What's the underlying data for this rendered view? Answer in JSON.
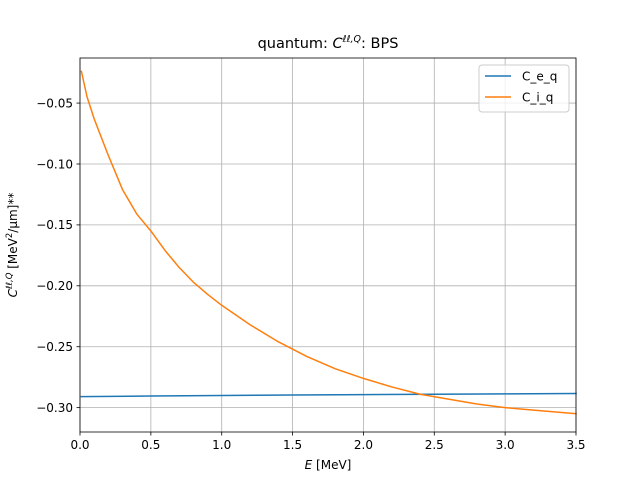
{
  "chart_data": {
    "type": "line",
    "title_prefix": "quantum: ",
    "title_symbol": "C",
    "title_superscript": "ℓℓ,Q",
    "title_suffix": ": BPS",
    "xlabel_symbol": "E",
    "xlabel_unit": " [MeV]",
    "ylabel_symbol": "C",
    "ylabel_superscript": "ℓℓ,Q",
    "ylabel_unit_a": " [MeV",
    "ylabel_unit_sup": "2",
    "ylabel_unit_b": "/μm]**",
    "xlim": [
      0,
      3.5
    ],
    "ylim": [
      -0.32,
      -0.013
    ],
    "xticks": [
      0.0,
      0.5,
      1.0,
      1.5,
      2.0,
      2.5,
      3.0,
      3.5
    ],
    "xtick_labels": [
      "0.0",
      "0.5",
      "1.0",
      "1.5",
      "2.0",
      "2.5",
      "3.0",
      "3.5"
    ],
    "yticks": [
      -0.05,
      -0.1,
      -0.15,
      -0.2,
      -0.25,
      -0.3
    ],
    "ytick_labels": [
      "−0.05",
      "−0.10",
      "−0.15",
      "−0.20",
      "−0.25",
      "−0.30"
    ],
    "grid": true,
    "legend_position": "top-right",
    "series": [
      {
        "name": "C_e_q",
        "color": "#1f77b4",
        "x": [
          0.01,
          0.5,
          1.0,
          1.5,
          2.0,
          2.5,
          3.0,
          3.5
        ],
        "y": [
          -0.291,
          -0.2905,
          -0.29,
          -0.2896,
          -0.2893,
          -0.289,
          -0.2887,
          -0.2884
        ]
      },
      {
        "name": "C_i_q",
        "color": "#ff7f0e",
        "x": [
          0.01,
          0.05,
          0.1,
          0.2,
          0.3,
          0.4,
          0.5,
          0.6,
          0.7,
          0.8,
          0.9,
          1.0,
          1.2,
          1.4,
          1.6,
          1.8,
          2.0,
          2.2,
          2.4,
          2.6,
          2.8,
          3.0,
          3.2,
          3.4,
          3.5
        ],
        "y": [
          -0.024,
          -0.045,
          -0.063,
          -0.093,
          -0.121,
          -0.141,
          -0.155,
          -0.171,
          -0.185,
          -0.197,
          -0.207,
          -0.216,
          -0.232,
          -0.246,
          -0.258,
          -0.268,
          -0.276,
          -0.283,
          -0.289,
          -0.293,
          -0.297,
          -0.3,
          -0.302,
          -0.304,
          -0.305
        ]
      }
    ]
  }
}
